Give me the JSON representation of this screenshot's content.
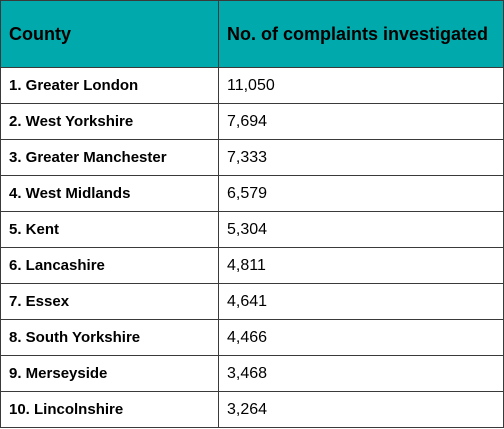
{
  "colors": {
    "header_background": "#00a9ab",
    "border": "#3a3a3a",
    "text": "#000000"
  },
  "chart_data": {
    "type": "table",
    "columns": [
      "County",
      "No. of complaints investigated"
    ],
    "rows": [
      {
        "county": "1. Greater London",
        "complaints": "11,050"
      },
      {
        "county": "2. West Yorkshire",
        "complaints": "7,694"
      },
      {
        "county": "3. Greater Manchester",
        "complaints": "7,333"
      },
      {
        "county": "4. West Midlands",
        "complaints": "6,579"
      },
      {
        "county": "5. Kent",
        "complaints": "5,304"
      },
      {
        "county": "6. Lancashire",
        "complaints": "4,811"
      },
      {
        "county": "7. Essex",
        "complaints": "4,641"
      },
      {
        "county": "8. South Yorkshire",
        "complaints": "4,466"
      },
      {
        "county": "9. Merseyside",
        "complaints": "3,468"
      },
      {
        "county": "10. Lincolnshire",
        "complaints": "3,264"
      }
    ]
  }
}
